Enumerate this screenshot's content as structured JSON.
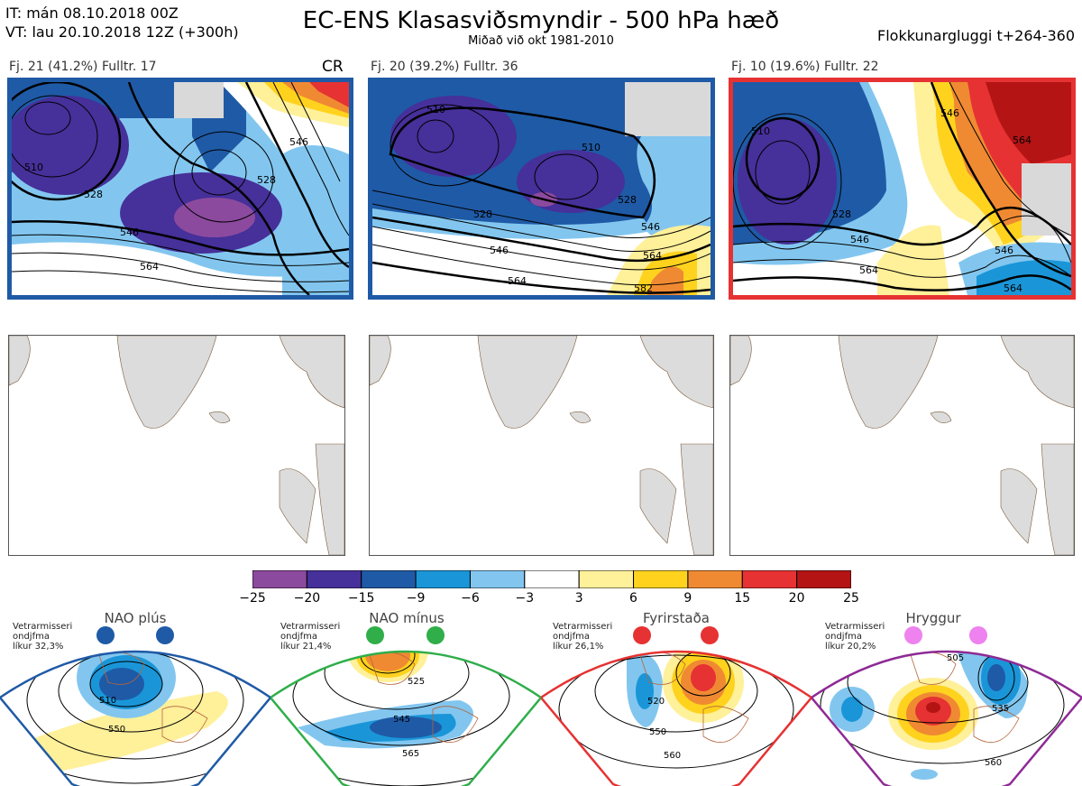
{
  "header": {
    "initial_time": "IT: mán 08.10.2018 00Z",
    "valid_time": "VT: lau 20.10.2018 12Z  (+300h)",
    "title": "EC-ENS Klasasviðsmyndir - 500 hPa hæð",
    "subtitle": "Miðað við okt 1981-2010",
    "window": "Flokkunargluggi t+264-360"
  },
  "clusters": [
    {
      "label": "Fj. 21 (41.2%)   Fulltr. 17",
      "frame_color": "#1f5aa6",
      "tag": "CR",
      "contour_labels": [
        "510",
        "528",
        "546",
        "564",
        "528",
        "546"
      ]
    },
    {
      "label": "Fj. 20 (39.2%)   Fulltr. 36",
      "frame_color": "#1f5aa6",
      "tag": "",
      "contour_labels": [
        "510",
        "510",
        "528",
        "546",
        "564",
        "528",
        "546",
        "564",
        "582"
      ]
    },
    {
      "label": "Fj. 10 (19.6%)   Fulltr. 22",
      "frame_color": "#e63232",
      "tag": "",
      "contour_labels": [
        "510",
        "528",
        "546",
        "564",
        "546",
        "564",
        "546",
        "564"
      ]
    }
  ],
  "colorbar": {
    "colors": [
      "#8c4a9e",
      "#46309a",
      "#1f5aa6",
      "#1a96d8",
      "#82c6ef",
      "#ffffff",
      "#fff09a",
      "#ffd21e",
      "#f08a32",
      "#e63232",
      "#b41414"
    ],
    "ticks": [
      "−25",
      "−20",
      "−15",
      "−9",
      "−6",
      "−3",
      "3",
      "6",
      "9",
      "15",
      "20",
      "25"
    ]
  },
  "regimes": [
    {
      "name": "NAO plús",
      "note": [
        "Vetrarmisseri",
        "ondjfma",
        "líkur 32,3%"
      ],
      "color": "#1f5aa6",
      "contour_labels": [
        "510",
        "550"
      ]
    },
    {
      "name": "NAO mínus",
      "note": [
        "Vetrarmisseri",
        "ondjfma",
        "líkur 21,4%"
      ],
      "color": "#2fae4a",
      "contour_labels": [
        "525",
        "545",
        "565"
      ]
    },
    {
      "name": "Fyrirstaða",
      "note": [
        "Vetrarmisseri",
        "ondjfma",
        "líkur 26,1%"
      ],
      "color": "#e63232",
      "contour_labels": [
        "520",
        "550",
        "560"
      ]
    },
    {
      "name": "Hryggur",
      "note": [
        "Vetrarmisseri",
        "ondjfma",
        "líkur 20,2%"
      ],
      "color": "#8e2a95",
      "contour_labels": [
        "505",
        "535",
        "560"
      ]
    }
  ]
}
